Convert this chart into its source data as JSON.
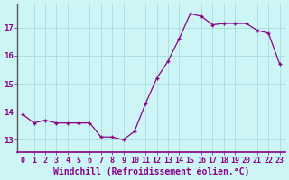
{
  "x": [
    0,
    1,
    2,
    3,
    4,
    5,
    6,
    7,
    8,
    9,
    10,
    11,
    12,
    13,
    14,
    15,
    16,
    17,
    18,
    19,
    20,
    21,
    22,
    23
  ],
  "y": [
    13.9,
    13.6,
    13.7,
    13.6,
    13.6,
    13.6,
    13.6,
    13.1,
    13.1,
    13.0,
    13.3,
    14.3,
    15.2,
    15.8,
    16.6,
    17.5,
    17.4,
    17.1,
    17.15,
    17.15,
    17.15,
    16.9,
    16.8,
    15.7
  ],
  "line_color": "#880088",
  "marker": "+",
  "background_color": "#cef5f5",
  "grid_color": "#aadddd",
  "xlabel": "Windchill (Refroidissement éolien,°C)",
  "xlabel_fontsize": 7.0,
  "yticks": [
    13,
    14,
    15,
    16,
    17
  ],
  "xticks": [
    0,
    1,
    2,
    3,
    4,
    5,
    6,
    7,
    8,
    9,
    10,
    11,
    12,
    13,
    14,
    15,
    16,
    17,
    18,
    19,
    20,
    21,
    22,
    23
  ],
  "ylim": [
    12.55,
    17.85
  ],
  "xlim": [
    -0.5,
    23.5
  ],
  "tick_fontsize": 6.0,
  "line_width": 0.9,
  "marker_size": 3.5,
  "label_color": "#880088",
  "spine_color": "#555555"
}
